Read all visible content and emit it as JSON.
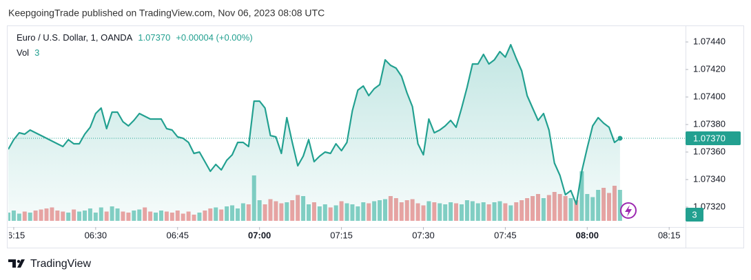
{
  "header": {
    "title": "KeepgoingTrade published on TradingView.com, Nov 06, 2023 08:08 UTC"
  },
  "footer": {
    "brand": "TradingView"
  },
  "chart_data": {
    "type": "line",
    "legend": {
      "symbol": "Euro / U.S. Dollar, 1, OANDA",
      "last": "1.07370",
      "change": "+0.00004 (+0.00%)"
    },
    "x": [
      "06:14",
      "06:15",
      "06:16",
      "06:17",
      "06:18",
      "06:19",
      "06:20",
      "06:21",
      "06:22",
      "06:23",
      "06:24",
      "06:25",
      "06:26",
      "06:27",
      "06:28",
      "06:29",
      "06:30",
      "06:31",
      "06:32",
      "06:33",
      "06:34",
      "06:35",
      "06:36",
      "06:37",
      "06:38",
      "06:39",
      "06:40",
      "06:41",
      "06:42",
      "06:43",
      "06:44",
      "06:45",
      "06:46",
      "06:47",
      "06:48",
      "06:49",
      "06:50",
      "06:51",
      "06:52",
      "06:53",
      "06:54",
      "06:55",
      "06:56",
      "06:57",
      "06:58",
      "06:59",
      "07:00",
      "07:01",
      "07:02",
      "07:03",
      "07:04",
      "07:05",
      "07:06",
      "07:07",
      "07:08",
      "07:09",
      "07:10",
      "07:11",
      "07:12",
      "07:13",
      "07:14",
      "07:15",
      "07:16",
      "07:17",
      "07:18",
      "07:19",
      "07:20",
      "07:21",
      "07:22",
      "07:23",
      "07:24",
      "07:25",
      "07:26",
      "07:27",
      "07:28",
      "07:29",
      "07:30",
      "07:31",
      "07:32",
      "07:33",
      "07:34",
      "07:35",
      "07:36",
      "07:37",
      "07:38",
      "07:39",
      "07:40",
      "07:41",
      "07:42",
      "07:43",
      "07:44",
      "07:45",
      "07:46",
      "07:47",
      "07:48",
      "07:49",
      "07:50",
      "07:51",
      "07:52",
      "07:53",
      "07:54",
      "07:55",
      "07:56",
      "07:57",
      "07:58",
      "07:59",
      "08:00",
      "08:01",
      "08:02",
      "08:03",
      "08:04",
      "08:05",
      "08:06"
    ],
    "series": [
      {
        "name": "Euro / U.S. Dollar, 1, OANDA",
        "color": "#22a090",
        "values": [
          1.07362,
          1.07369,
          1.07374,
          1.07373,
          1.07376,
          1.07374,
          1.07372,
          1.0737,
          1.07368,
          1.07366,
          1.07364,
          1.07369,
          1.07366,
          1.07366,
          1.07373,
          1.07378,
          1.07388,
          1.07392,
          1.07377,
          1.07389,
          1.07389,
          1.07382,
          1.07379,
          1.07383,
          1.07388,
          1.07386,
          1.07384,
          1.07384,
          1.07384,
          1.07377,
          1.07376,
          1.07371,
          1.0737,
          1.07367,
          1.07359,
          1.0736,
          1.07353,
          1.07346,
          1.07351,
          1.07347,
          1.07354,
          1.07358,
          1.07367,
          1.07367,
          1.07364,
          1.07397,
          1.07397,
          1.07392,
          1.07372,
          1.07371,
          1.07359,
          1.07385,
          1.07367,
          1.0735,
          1.07357,
          1.07369,
          1.07353,
          1.07357,
          1.0736,
          1.07359,
          1.07366,
          1.07361,
          1.07367,
          1.0739,
          1.07405,
          1.07408,
          1.07401,
          1.07406,
          1.07409,
          1.07427,
          1.07423,
          1.07421,
          1.07415,
          1.07403,
          1.07393,
          1.07366,
          1.07358,
          1.07384,
          1.07374,
          1.07376,
          1.07379,
          1.07383,
          1.07378,
          1.07392,
          1.07407,
          1.07424,
          1.07424,
          1.07431,
          1.07424,
          1.07427,
          1.07433,
          1.07429,
          1.07438,
          1.07428,
          1.07419,
          1.07401,
          1.07392,
          1.07383,
          1.07388,
          1.07376,
          1.07352,
          1.07343,
          1.07329,
          1.07332,
          1.07322,
          1.07346,
          1.07363,
          1.07379,
          1.07385,
          1.07381,
          1.07378,
          1.07367,
          1.0737
        ]
      },
      {
        "name": "Vol",
        "up_color": "#85d0c5",
        "down_color": "#f0a3a3",
        "values": [
          0.8,
          1.0,
          0.7,
          0.9,
          0.8,
          1.0,
          1.1,
          1.2,
          1.3,
          1.0,
          0.9,
          0.8,
          1.1,
          0.9,
          1.0,
          1.2,
          0.8,
          1.3,
          0.9,
          1.4,
          1.2,
          0.9,
          0.8,
          1.0,
          1.1,
          1.3,
          0.9,
          0.8,
          1.0,
          0.9,
          0.8,
          1.0,
          0.7,
          0.9,
          0.6,
          0.8,
          1.0,
          1.2,
          1.3,
          1.1,
          1.4,
          1.5,
          1.2,
          1.7,
          1.6,
          4.4,
          2.0,
          1.6,
          2.1,
          1.9,
          1.7,
          1.8,
          2.0,
          2.5,
          2.4,
          1.6,
          1.8,
          1.4,
          1.6,
          1.3,
          1.5,
          1.9,
          1.7,
          1.6,
          1.4,
          1.8,
          1.7,
          1.9,
          2.0,
          2.1,
          2.4,
          2.2,
          1.8,
          2.0,
          2.1,
          1.7,
          1.5,
          1.9,
          1.8,
          1.7,
          1.6,
          1.8,
          1.7,
          1.6,
          2.0,
          1.9,
          1.7,
          1.8,
          1.6,
          1.8,
          1.9,
          1.7,
          1.5,
          1.8,
          2.0,
          2.2,
          2.4,
          2.6,
          2.2,
          2.5,
          2.8,
          2.6,
          2.4,
          2.2,
          2.0,
          4.8,
          2.6,
          2.3,
          3.0,
          3.2,
          2.7,
          3.4,
          3
        ]
      }
    ],
    "xlim": [
      "06:14",
      "08:18"
    ],
    "xticks": [
      "06:15",
      "06:30",
      "06:45",
      "07:00",
      "07:15",
      "07:30",
      "07:45",
      "08:00",
      "08:15"
    ],
    "ylim": [
      1.0745,
      1.0731
    ],
    "yticks": [
      {
        "value": 1.0744,
        "label": "1.07440"
      },
      {
        "value": 1.0742,
        "label": "1.07420"
      },
      {
        "value": 1.074,
        "label": "1.07400"
      },
      {
        "value": 1.0738,
        "label": "1.07380"
      },
      {
        "value": 1.0736,
        "label": "1.07360"
      },
      {
        "value": 1.0734,
        "label": "1.07340"
      },
      {
        "value": 1.0732,
        "label": "1.07320"
      }
    ],
    "volume_ylim": [
      0,
      6
    ],
    "grid": false
  }
}
